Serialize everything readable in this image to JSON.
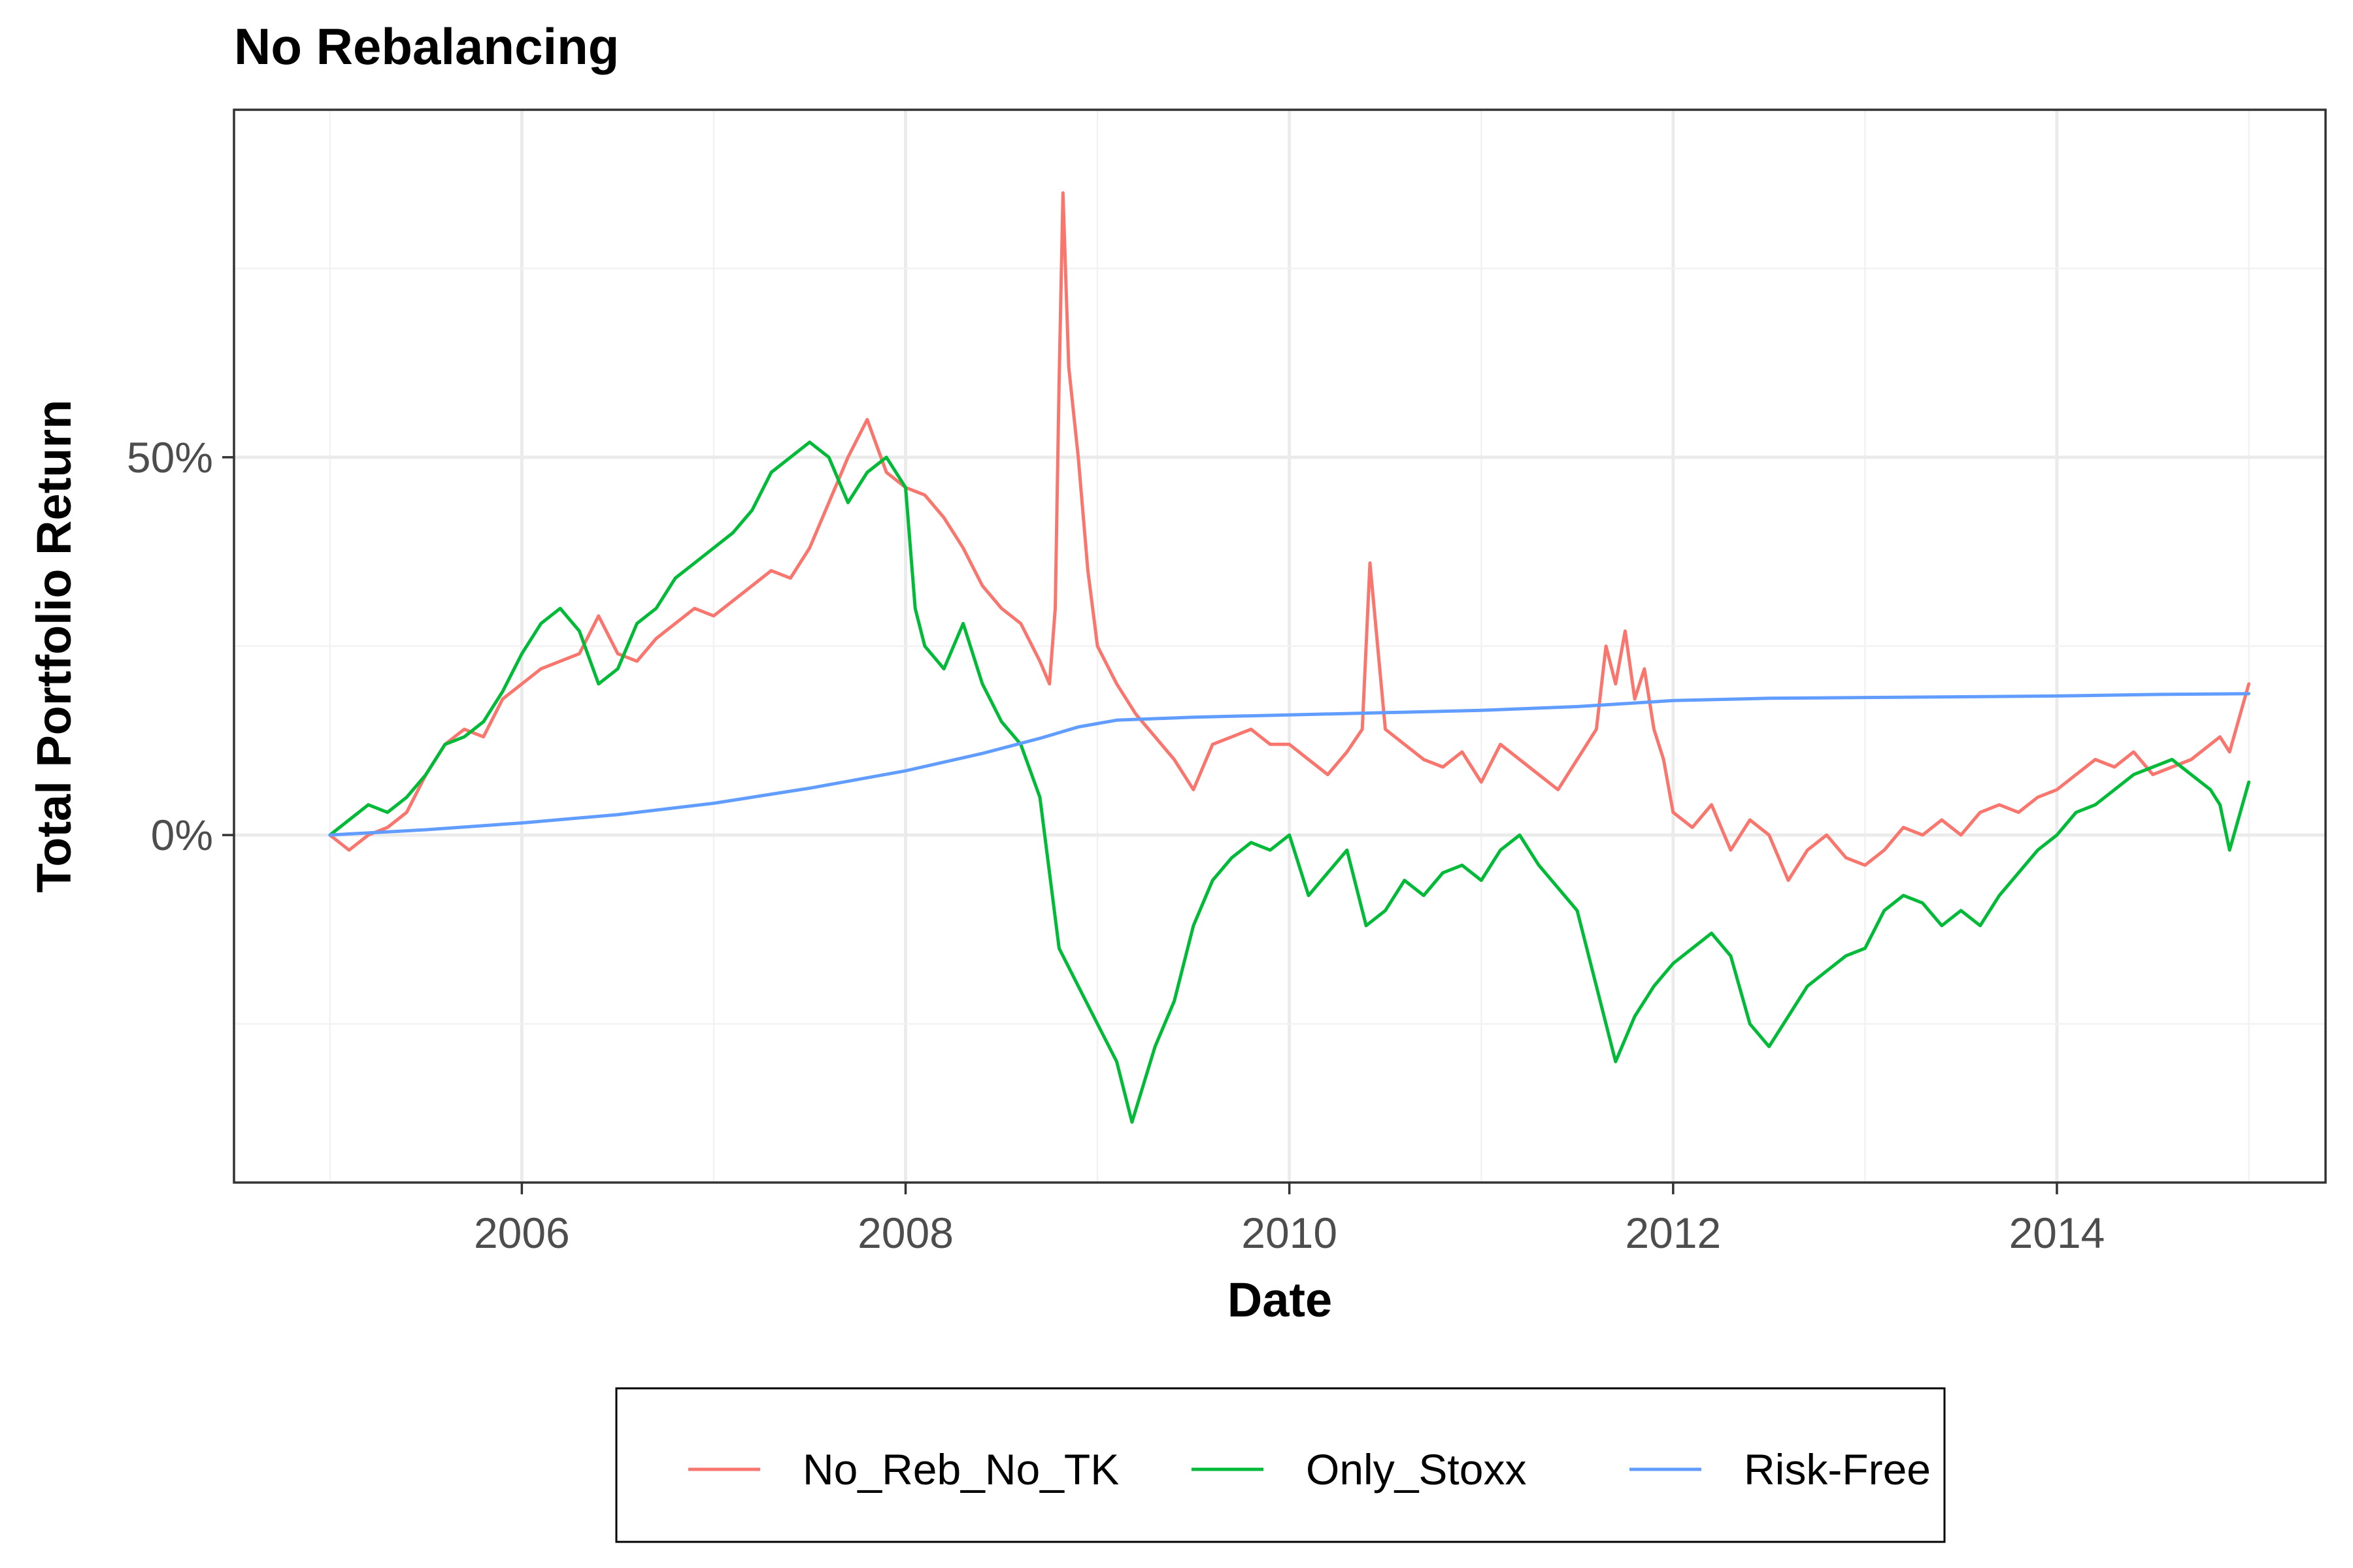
{
  "chart_data": {
    "type": "line",
    "title": "No Rebalancing",
    "xlabel": "Date",
    "ylabel": "Total Portfolio Return",
    "x_ticks": [
      "2006",
      "2008",
      "2010",
      "2012",
      "2014"
    ],
    "y_ticks": [
      "0%",
      "50%"
    ],
    "xlim": [
      2004.5,
      2015.4
    ],
    "ylim": [
      -0.46,
      0.96
    ],
    "grid": true,
    "legend_position": "bottom",
    "series": [
      {
        "name": "No_Reb_No_TK",
        "color": "#F8766D",
        "x": [
          2005.0,
          2005.1,
          2005.2,
          2005.3,
          2005.4,
          2005.5,
          2005.6,
          2005.7,
          2005.8,
          2005.9,
          2006.0,
          2006.1,
          2006.2,
          2006.3,
          2006.4,
          2006.5,
          2006.6,
          2006.7,
          2006.8,
          2006.9,
          2007.0,
          2007.1,
          2007.2,
          2007.3,
          2007.4,
          2007.5,
          2007.6,
          2007.65,
          2007.7,
          2007.8,
          2007.9,
          2008.0,
          2008.1,
          2008.2,
          2008.3,
          2008.4,
          2008.5,
          2008.6,
          2008.7,
          2008.75,
          2008.78,
          2008.8,
          2008.82,
          2008.85,
          2008.9,
          2008.95,
          2009.0,
          2009.1,
          2009.2,
          2009.3,
          2009.4,
          2009.5,
          2009.6,
          2009.7,
          2009.8,
          2009.9,
          2010.0,
          2010.1,
          2010.2,
          2010.3,
          2010.38,
          2010.42,
          2010.5,
          2010.6,
          2010.7,
          2010.8,
          2010.9,
          2011.0,
          2011.1,
          2011.2,
          2011.3,
          2011.4,
          2011.5,
          2011.6,
          2011.65,
          2011.7,
          2011.75,
          2011.8,
          2011.85,
          2011.9,
          2011.95,
          2012.0,
          2012.1,
          2012.2,
          2012.3,
          2012.4,
          2012.5,
          2012.6,
          2012.7,
          2012.8,
          2012.9,
          2013.0,
          2013.1,
          2013.2,
          2013.3,
          2013.4,
          2013.5,
          2013.6,
          2013.7,
          2013.8,
          2013.9,
          2014.0,
          2014.1,
          2014.2,
          2014.3,
          2014.4,
          2014.5,
          2014.6,
          2014.7,
          2014.8,
          2014.85,
          2014.9,
          2015.0
        ],
        "values": [
          0.0,
          -0.02,
          0.0,
          0.01,
          0.03,
          0.08,
          0.12,
          0.14,
          0.13,
          0.18,
          0.2,
          0.22,
          0.23,
          0.24,
          0.29,
          0.24,
          0.23,
          0.26,
          0.28,
          0.3,
          0.29,
          0.31,
          0.33,
          0.35,
          0.34,
          0.38,
          0.44,
          0.47,
          0.5,
          0.55,
          0.48,
          0.46,
          0.45,
          0.42,
          0.38,
          0.33,
          0.3,
          0.28,
          0.23,
          0.2,
          0.3,
          0.6,
          0.85,
          0.62,
          0.5,
          0.35,
          0.25,
          0.2,
          0.16,
          0.13,
          0.1,
          0.06,
          0.12,
          0.13,
          0.14,
          0.12,
          0.12,
          0.1,
          0.08,
          0.11,
          0.14,
          0.36,
          0.14,
          0.12,
          0.1,
          0.09,
          0.11,
          0.07,
          0.12,
          0.1,
          0.08,
          0.06,
          0.1,
          0.14,
          0.25,
          0.2,
          0.27,
          0.18,
          0.22,
          0.14,
          0.1,
          0.03,
          0.01,
          0.04,
          -0.02,
          0.02,
          0.0,
          -0.06,
          -0.02,
          0.0,
          -0.03,
          -0.04,
          -0.02,
          0.01,
          0.0,
          0.02,
          0.0,
          0.03,
          0.04,
          0.03,
          0.05,
          0.06,
          0.08,
          0.1,
          0.09,
          0.11,
          0.08,
          0.09,
          0.1,
          0.12,
          0.13,
          0.11,
          0.2
        ]
      },
      {
        "name": "Only_Stoxx",
        "color": "#00BA38",
        "x": [
          2005.0,
          2005.1,
          2005.2,
          2005.3,
          2005.4,
          2005.5,
          2005.6,
          2005.7,
          2005.8,
          2005.9,
          2006.0,
          2006.1,
          2006.2,
          2006.3,
          2006.4,
          2006.5,
          2006.6,
          2006.7,
          2006.8,
          2006.9,
          2007.0,
          2007.1,
          2007.2,
          2007.3,
          2007.4,
          2007.5,
          2007.6,
          2007.7,
          2007.8,
          2007.9,
          2008.0,
          2008.05,
          2008.1,
          2008.2,
          2008.3,
          2008.4,
          2008.5,
          2008.6,
          2008.7,
          2008.8,
          2008.9,
          2009.0,
          2009.1,
          2009.18,
          2009.3,
          2009.4,
          2009.5,
          2009.6,
          2009.7,
          2009.8,
          2009.9,
          2010.0,
          2010.1,
          2010.2,
          2010.3,
          2010.4,
          2010.5,
          2010.6,
          2010.7,
          2010.8,
          2010.9,
          2011.0,
          2011.1,
          2011.2,
          2011.3,
          2011.4,
          2011.5,
          2011.6,
          2011.65,
          2011.7,
          2011.8,
          2011.9,
          2012.0,
          2012.1,
          2012.2,
          2012.3,
          2012.4,
          2012.5,
          2012.6,
          2012.7,
          2012.8,
          2012.9,
          2013.0,
          2013.1,
          2013.2,
          2013.3,
          2013.4,
          2013.5,
          2013.6,
          2013.7,
          2013.8,
          2013.9,
          2014.0,
          2014.1,
          2014.2,
          2014.3,
          2014.4,
          2014.5,
          2014.6,
          2014.7,
          2014.8,
          2014.85,
          2014.9,
          2015.0
        ],
        "values": [
          0.0,
          0.02,
          0.04,
          0.03,
          0.05,
          0.08,
          0.12,
          0.13,
          0.15,
          0.19,
          0.24,
          0.28,
          0.3,
          0.27,
          0.2,
          0.22,
          0.28,
          0.3,
          0.34,
          0.36,
          0.38,
          0.4,
          0.43,
          0.48,
          0.5,
          0.52,
          0.5,
          0.44,
          0.48,
          0.5,
          0.46,
          0.3,
          0.25,
          0.22,
          0.28,
          0.2,
          0.15,
          0.12,
          0.05,
          -0.15,
          -0.2,
          -0.25,
          -0.3,
          -0.38,
          -0.28,
          -0.22,
          -0.12,
          -0.06,
          -0.03,
          -0.01,
          -0.02,
          0.0,
          -0.08,
          -0.05,
          -0.02,
          -0.12,
          -0.1,
          -0.06,
          -0.08,
          -0.05,
          -0.04,
          -0.06,
          -0.02,
          0.0,
          -0.04,
          -0.07,
          -0.1,
          -0.2,
          -0.25,
          -0.3,
          -0.24,
          -0.2,
          -0.17,
          -0.15,
          -0.13,
          -0.16,
          -0.25,
          -0.28,
          -0.24,
          -0.2,
          -0.18,
          -0.16,
          -0.15,
          -0.1,
          -0.08,
          -0.09,
          -0.12,
          -0.1,
          -0.12,
          -0.08,
          -0.05,
          -0.02,
          0.0,
          0.03,
          0.04,
          0.06,
          0.08,
          0.09,
          0.1,
          0.08,
          0.06,
          0.04,
          -0.02,
          0.07
        ]
      },
      {
        "name": "Risk-Free",
        "color": "#619CFF",
        "x": [
          2005.0,
          2005.5,
          2006.0,
          2006.5,
          2007.0,
          2007.5,
          2008.0,
          2008.4,
          2008.7,
          2008.9,
          2009.1,
          2009.5,
          2010.0,
          2010.5,
          2011.0,
          2011.5,
          2012.0,
          2012.5,
          2013.0,
          2013.5,
          2014.0,
          2014.5,
          2015.0
        ],
        "values": [
          0.0,
          0.007,
          0.016,
          0.027,
          0.042,
          0.062,
          0.085,
          0.108,
          0.128,
          0.143,
          0.152,
          0.156,
          0.159,
          0.162,
          0.165,
          0.17,
          0.178,
          0.181,
          0.182,
          0.183,
          0.184,
          0.186,
          0.187
        ]
      }
    ]
  }
}
